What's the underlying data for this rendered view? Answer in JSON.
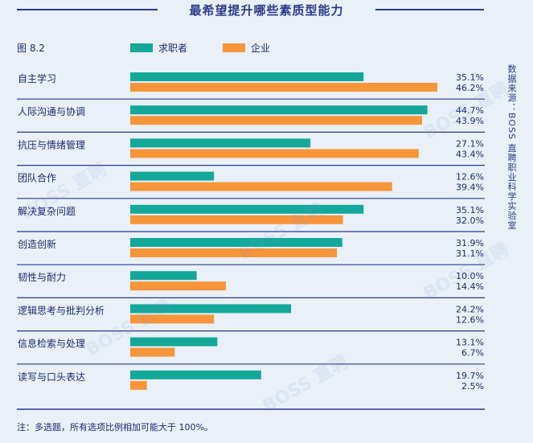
{
  "title": "最希望提升哪些素质型能力",
  "figure_label": "图 8.2",
  "source_note": "数据来源：BOSS 直聘职业科学实验室",
  "footnote": "注：多选题，所有选项比例相加可能大于 100%。",
  "watermark_text": "BOSS 直聘",
  "colors": {
    "job_seeker": "#14a89a",
    "enterprise": "#f7953a",
    "divider": "#2a3a8c"
  },
  "chart_data": {
    "type": "bar",
    "orientation": "horizontal",
    "categories": [
      "自主学习",
      "人际沟通与协调",
      "抗压与情绪管理",
      "团队合作",
      "解决复杂问题",
      "创造创新",
      "韧性与耐力",
      "逻辑思考与批判分析",
      "信息检索与处理",
      "读写与口头表达"
    ],
    "series": [
      {
        "name": "求职者",
        "values": [
          35.1,
          44.7,
          27.1,
          12.6,
          35.1,
          31.9,
          10.0,
          24.2,
          13.1,
          19.7
        ],
        "labels": [
          "35.1%",
          "44.7%",
          "27.1%",
          "12.6%",
          "35.1%",
          "31.9%",
          "10.0%",
          "24.2%",
          "13.1%",
          "19.7%"
        ]
      },
      {
        "name": "企业",
        "values": [
          46.2,
          43.9,
          43.4,
          39.4,
          32.0,
          31.1,
          14.4,
          12.6,
          6.7,
          2.5
        ],
        "labels": [
          "46.2%",
          "43.9%",
          "43.4%",
          "39.4%",
          "32.0%",
          "31.1%",
          "14.4%",
          "12.6%",
          "6.7%",
          "2.5%"
        ]
      }
    ],
    "xlim": [
      0,
      46.2
    ],
    "grid": false,
    "legend_position": "top"
  }
}
